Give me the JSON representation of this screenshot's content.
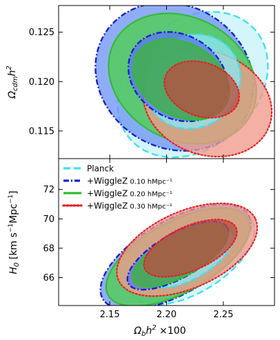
{
  "chart_data": [
    {
      "type": "contour",
      "panel": "top",
      "ylabel": "Ωcdm h²",
      "xlim": [
        2.105,
        2.295
      ],
      "ylim": [
        0.1122,
        0.1277
      ],
      "yticks": [
        "0.115",
        "0.120",
        "0.125"
      ],
      "ytick_values": [
        0.115,
        0.12,
        0.125
      ],
      "xticks_shown": false,
      "series": [
        {
          "key": "planck",
          "outer": {
            "center": [
              2.223,
              0.1197
            ],
            "rx": 0.056,
            "ry": 0.0084,
            "rot": -0.85
          },
          "inner": {
            "center": [
              2.223,
              0.12
            ],
            "rx": 0.04,
            "ry": 0.005,
            "rot": -0.85
          }
        },
        {
          "key": "wz010",
          "outer": {
            "center": [
              2.207,
              0.1205
            ],
            "rx": 0.072,
            "ry": 0.0072,
            "rot": -0.55
          },
          "inner": {
            "center": [
              2.21,
              0.1205
            ],
            "rx": 0.046,
            "ry": 0.0042,
            "rot": -0.55
          }
        },
        {
          "key": "wz020",
          "outer": {
            "center": [
              2.214,
              0.1203
            ],
            "rx": 0.068,
            "ry": 0.0062,
            "rot": -0.5
          },
          "inner": {
            "center": [
              2.213,
              0.1202
            ],
            "rx": 0.045,
            "ry": 0.0037,
            "rot": -0.5
          }
        },
        {
          "key": "wz030",
          "outer": {
            "center": [
              2.236,
              0.1178
            ],
            "rx": 0.058,
            "ry": 0.0052,
            "rot": -0.35
          },
          "inner": {
            "center": [
              2.231,
              0.1192
            ],
            "rx": 0.034,
            "ry": 0.0027,
            "rot": -0.35
          }
        }
      ]
    },
    {
      "type": "contour",
      "panel": "bottom",
      "ylabel": "H0 [km s⁻¹ Mpc⁻¹]",
      "xlabel": "Ωb h² ×100",
      "xlim": [
        2.105,
        2.295
      ],
      "ylim": [
        64.1,
        74.1
      ],
      "xticks": [
        "2.15",
        "2.20",
        "2.25"
      ],
      "xtick_values": [
        2.15,
        2.2,
        2.25
      ],
      "yticks": [
        "66",
        "68",
        "70",
        "72"
      ],
      "ytick_values": [
        66,
        68,
        70,
        72
      ],
      "series": [
        {
          "key": "planck",
          "outer": {
            "center": [
              2.222,
              67.4
            ],
            "rx": 0.062,
            "ry": 2.4,
            "rot": 0.55
          },
          "inner": {
            "center": [
              2.222,
              67.4
            ],
            "rx": 0.042,
            "ry": 1.4,
            "rot": 0.55
          }
        },
        {
          "key": "wz010",
          "outer": {
            "center": [
              2.208,
              67.4
            ],
            "rx": 0.074,
            "ry": 2.5,
            "rot": 0.52
          },
          "inner": {
            "center": [
              2.21,
              67.5
            ],
            "rx": 0.05,
            "ry": 1.5,
            "rot": 0.52
          }
        },
        {
          "key": "wz020",
          "outer": {
            "center": [
              2.21,
              67.4
            ],
            "rx": 0.07,
            "ry": 2.4,
            "rot": 0.5
          },
          "inner": {
            "center": [
              2.212,
              67.5
            ],
            "rx": 0.047,
            "ry": 1.4,
            "rot": 0.5
          }
        },
        {
          "key": "wz030",
          "outer": {
            "center": [
              2.218,
              67.9
            ],
            "rx": 0.066,
            "ry": 2.6,
            "rot": 0.42
          },
          "inner": {
            "center": [
              2.221,
              68.0
            ],
            "rx": 0.044,
            "ry": 1.5,
            "rot": 0.42
          }
        }
      ]
    }
  ],
  "legend": {
    "placement": "upper-left of bottom panel",
    "entries": [
      {
        "key": "planck",
        "text": "Planck",
        "sub": ""
      },
      {
        "key": "wz010",
        "text": "+WiggleZ",
        "sub": "0.10 hMpc⁻¹"
      },
      {
        "key": "wz020",
        "text": "+WiggleZ",
        "sub": "0.20 hMpc⁻¹"
      },
      {
        "key": "wz030",
        "text": "+WiggleZ",
        "sub": "0.30 hMpc⁻¹"
      }
    ]
  },
  "styles": {
    "planck": {
      "line": "#40e0f0",
      "fill_outer": "#c8f4f8",
      "fill_inner": "#8ee6f2",
      "dash": "10,5",
      "width": 2.4
    },
    "wz010": {
      "line": "#1a1fcc",
      "fill_outer": "#6f96f5",
      "fill_inner": "#5b78ee",
      "dash": "8,3,2,3",
      "width": 2.4
    },
    "wz020": {
      "line": "#33bb33",
      "fill_outer": "#4fd04f",
      "fill_inner": "#3fb23f",
      "dash": "",
      "width": 2.2
    },
    "wz030": {
      "line": "#e62020",
      "fill_outer": "#f19a8a",
      "fill_inner": "#b85040",
      "dash": "2,3",
      "width": 2.2
    }
  }
}
